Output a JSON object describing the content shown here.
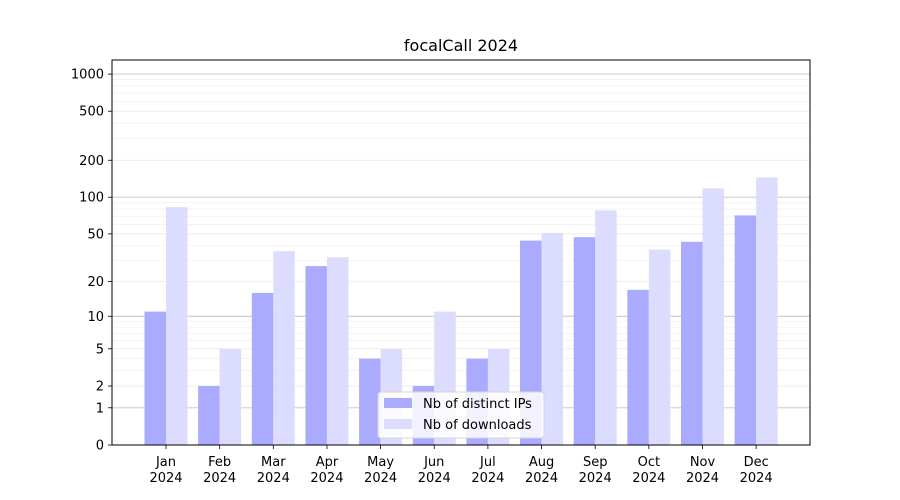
{
  "chart_data": {
    "type": "bar",
    "title": "focalCall 2024",
    "xlabel": "",
    "ylabel": "",
    "categories": [
      [
        "Jan",
        "2024"
      ],
      [
        "Feb",
        "2024"
      ],
      [
        "Mar",
        "2024"
      ],
      [
        "Apr",
        "2024"
      ],
      [
        "May",
        "2024"
      ],
      [
        "Jun",
        "2024"
      ],
      [
        "Jul",
        "2024"
      ],
      [
        "Aug",
        "2024"
      ],
      [
        "Sep",
        "2024"
      ],
      [
        "Oct",
        "2024"
      ],
      [
        "Nov",
        "2024"
      ],
      [
        "Dec",
        "2024"
      ]
    ],
    "series": [
      {
        "name": "Nb of distinct IPs",
        "color": "#aaaaff",
        "values": [
          11,
          2,
          16,
          27,
          4,
          2,
          4,
          44,
          47,
          17,
          43,
          71
        ]
      },
      {
        "name": "Nb of downloads",
        "color": "#dcdcff",
        "values": [
          83,
          5,
          36,
          32,
          5,
          11,
          5,
          51,
          78,
          37,
          118,
          145
        ]
      }
    ],
    "y_scale": "symlog",
    "ylim": [
      0,
      1300
    ],
    "y_ticks": [
      "0",
      "1",
      "2",
      "5",
      "10",
      "20",
      "50",
      "100",
      "200",
      "500",
      "1000"
    ],
    "grid": true,
    "legend_position": "bottom-center"
  }
}
